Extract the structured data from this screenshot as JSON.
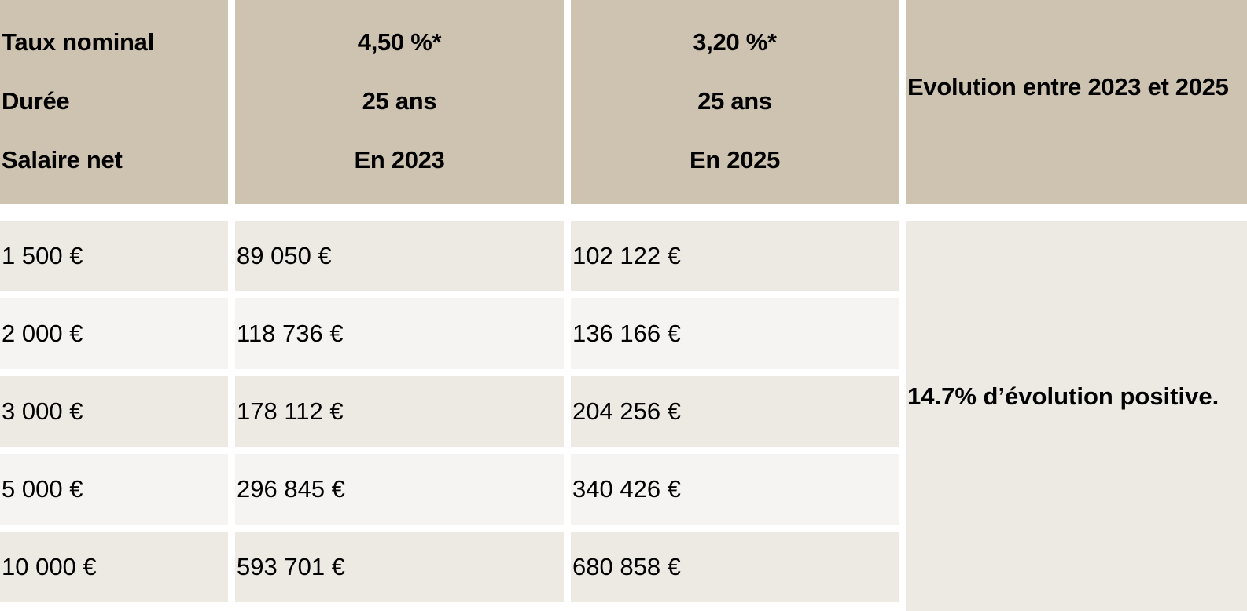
{
  "header": {
    "labels": [
      "Taux nominal",
      "Durée",
      "Salaire net"
    ],
    "col2023": [
      "4,50 %*",
      "25 ans",
      "En 2023"
    ],
    "col2025": [
      "3,20 %*",
      "25 ans",
      "En 2025"
    ],
    "evolution": "Evolution entre 2023 et 2025"
  },
  "rows": [
    {
      "salary": "1 500 €",
      "v2023": "89 050 €",
      "v2025": "102 122 €"
    },
    {
      "salary": "2 000 €",
      "v2023": "118 736 €",
      "v2025": "136 166 €"
    },
    {
      "salary": "3 000 €",
      "v2023": "178 112 €",
      "v2025": "204 256 €"
    },
    {
      "salary": "5 000 €",
      "v2023": "296 845 €",
      "v2025": "340 426 €"
    },
    {
      "salary": "10 000 €",
      "v2023": "593 701 €",
      "v2025": "680 858 €"
    }
  ],
  "evolution_note": "14.7% d’évolution positive.",
  "colors": {
    "header": "#CEC3B0",
    "row_odd": "#EDE9E3",
    "row_even": "#F5F4F2"
  }
}
